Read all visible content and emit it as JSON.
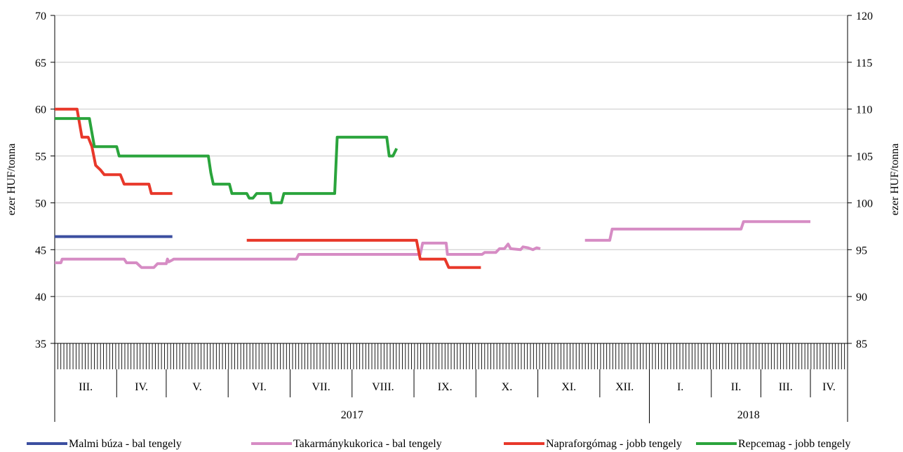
{
  "chart_data": {
    "type": "line",
    "title": "",
    "x_months": [
      {
        "label": "III.",
        "weeks": 5
      },
      {
        "label": "IV.",
        "weeks": 4
      },
      {
        "label": "V.",
        "weeks": 5
      },
      {
        "label": "VI.",
        "weeks": 5
      },
      {
        "label": "VII.",
        "weeks": 5
      },
      {
        "label": "VIII.",
        "weeks": 5
      },
      {
        "label": "IX.",
        "weeks": 5
      },
      {
        "label": "X.",
        "weeks": 5
      },
      {
        "label": "XI.",
        "weeks": 5
      },
      {
        "label": "XII.",
        "weeks": 4
      },
      {
        "label": "I.",
        "weeks": 5
      },
      {
        "label": "II.",
        "weeks": 4
      },
      {
        "label": "III.",
        "weeks": 4
      },
      {
        "label": "IV.",
        "weeks": 3
      }
    ],
    "x_years": [
      {
        "label": "2017",
        "months": 10
      },
      {
        "label": "2018",
        "months": 4
      }
    ],
    "left_axis": {
      "label": "ezer HUF/tonna",
      "min": 35,
      "max": 70,
      "ticks": [
        35,
        40,
        45,
        50,
        55,
        60,
        65,
        70
      ]
    },
    "right_axis": {
      "label": "ezer HUF/tonna",
      "min": 85,
      "max": 120,
      "ticks": [
        85,
        90,
        95,
        100,
        105,
        110,
        115,
        120
      ]
    },
    "grid": true,
    "legend_position": "bottom",
    "series": [
      {
        "name": "Malmi búza - bal tengely",
        "axis": "left",
        "color": "#3c4fa0",
        "points": [
          [
            0,
            46.4
          ],
          [
            9.5,
            46.4
          ]
        ]
      },
      {
        "name": "Takarmánykukorica - bal tengely",
        "axis": "left",
        "color": "#d68cc4",
        "points": [
          [
            0,
            43.6
          ],
          [
            0.5,
            43.6
          ],
          [
            0.6,
            44.0
          ],
          [
            5.6,
            44.0
          ],
          [
            5.8,
            43.6
          ],
          [
            6.6,
            43.6
          ],
          [
            7.0,
            43.1
          ],
          [
            8.0,
            43.1
          ],
          [
            8.3,
            43.5
          ],
          [
            9.0,
            43.5
          ],
          [
            9.1,
            44.0
          ],
          [
            9.2,
            43.7
          ],
          [
            9.5,
            43.9
          ],
          [
            9.6,
            44.0
          ],
          [
            19.5,
            44.0
          ],
          [
            19.7,
            44.5
          ],
          [
            29.5,
            44.5
          ],
          [
            29.7,
            45.7
          ],
          [
            31.6,
            45.7
          ],
          [
            31.7,
            44.5
          ],
          [
            34.5,
            44.5
          ],
          [
            34.7,
            44.7
          ],
          [
            35.6,
            44.7
          ],
          [
            35.9,
            45.1
          ],
          [
            36.3,
            45.1
          ],
          [
            36.6,
            45.6
          ],
          [
            36.8,
            45.1
          ],
          [
            37.6,
            45.0
          ],
          [
            37.8,
            45.3
          ],
          [
            38.2,
            45.2
          ],
          [
            38.6,
            45.0
          ],
          [
            38.9,
            45.2
          ],
          [
            39.2,
            45.1
          ]
        ]
      },
      {
        "name": "Takarmánykukorica - bal tengely (2)",
        "axis": "left",
        "color": "#d68cc4",
        "points": [
          [
            42.8,
            46.0
          ],
          [
            44.8,
            46.0
          ],
          [
            45.0,
            47.2
          ],
          [
            55.4,
            47.2
          ],
          [
            55.6,
            48.0
          ],
          [
            61.0,
            48.0
          ]
        ]
      },
      {
        "name": "Napraforgómag - jobb tengely",
        "axis": "right",
        "color": "#e8382a",
        "points": [
          [
            0,
            110
          ],
          [
            1.8,
            110
          ],
          [
            2.2,
            107
          ],
          [
            2.7,
            107
          ],
          [
            3.0,
            106
          ],
          [
            3.3,
            104
          ],
          [
            3.7,
            103.5
          ],
          [
            4.0,
            103.0
          ],
          [
            5.3,
            103.0
          ],
          [
            5.6,
            102.0
          ],
          [
            7.6,
            102.0
          ],
          [
            7.8,
            101.0
          ],
          [
            9.5,
            101.0
          ]
        ]
      },
      {
        "name": "Napraforgómag - jobb tengely (2)",
        "axis": "right",
        "color": "#e8382a",
        "points": [
          [
            15.5,
            96.0
          ],
          [
            29.2,
            96.0
          ],
          [
            29.5,
            94.0
          ],
          [
            31.5,
            94.0
          ],
          [
            31.8,
            93.1
          ],
          [
            34.4,
            93.1
          ]
        ]
      },
      {
        "name": "Repcemag - jobb tengely",
        "axis": "right",
        "color": "#2aa43c",
        "points": [
          [
            0,
            109
          ],
          [
            2.8,
            109
          ],
          [
            3.2,
            106
          ],
          [
            5.0,
            106
          ],
          [
            5.2,
            105
          ],
          [
            12.4,
            105
          ],
          [
            12.6,
            103.2
          ],
          [
            12.8,
            102.0
          ],
          [
            14.1,
            102.0
          ],
          [
            14.3,
            101.0
          ],
          [
            15.5,
            101.0
          ],
          [
            15.7,
            100.5
          ],
          [
            16.0,
            100.5
          ],
          [
            16.3,
            101.0
          ],
          [
            17.4,
            101.0
          ],
          [
            17.5,
            100.0
          ],
          [
            18.3,
            100.0
          ],
          [
            18.5,
            101.0
          ],
          [
            22.6,
            101.0
          ],
          [
            22.8,
            107.0
          ],
          [
            26.8,
            107.0
          ],
          [
            27.0,
            105.0
          ],
          [
            27.3,
            105.0
          ],
          [
            27.6,
            105.8
          ]
        ]
      }
    ]
  },
  "legend": [
    {
      "label": "Malmi búza - bal tengely",
      "color": "#3c4fa0"
    },
    {
      "label": "Takarmánykukorica - bal tengely",
      "color": "#d68cc4"
    },
    {
      "label": "Napraforgómag - jobb tengely",
      "color": "#e8382a"
    },
    {
      "label": "Repcemag - jobb tengely",
      "color": "#2aa43c"
    }
  ]
}
